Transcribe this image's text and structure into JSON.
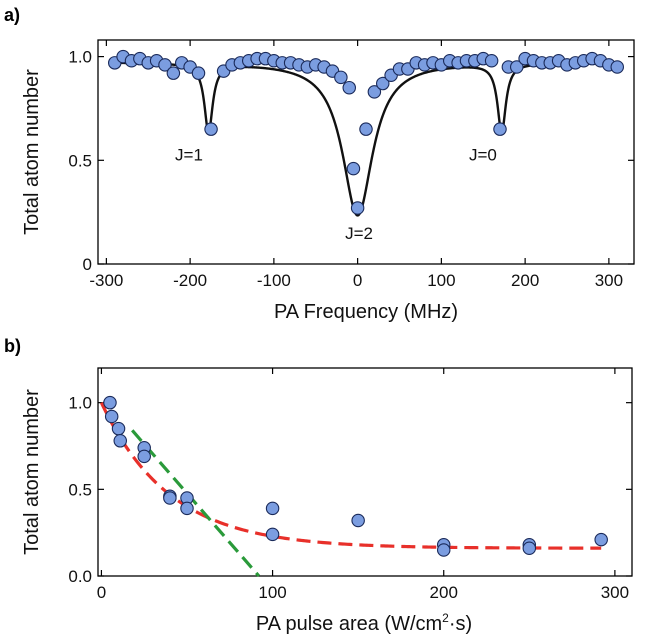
{
  "chart_data": [
    {
      "type": "scatter",
      "panel_label": "a)",
      "xlabel": "PA Frequency (MHz)",
      "ylabel": "Total atom number",
      "xlim": [
        -310,
        330
      ],
      "ylim": [
        0,
        1.08
      ],
      "xticks": [
        -300,
        -200,
        -100,
        0,
        100,
        200,
        300
      ],
      "xtick_labels": [
        "-300",
        "-200",
        "-100",
        "0",
        "100",
        "200",
        "300"
      ],
      "yticks": [
        0,
        0.5,
        1.0
      ],
      "ytick_labels": [
        "0",
        "0.5",
        "1.0"
      ],
      "grid": false,
      "marker_color": "#7b9de0",
      "fit_color": "#111111",
      "series": [
        {
          "kind": "points",
          "x": [
            -290,
            -280,
            -270,
            -260,
            -250,
            -240,
            -230,
            -220,
            -210,
            -200,
            -190,
            -175,
            -160,
            -150,
            -140,
            -130,
            -120,
            -110,
            -100,
            -90,
            -80,
            -70,
            -60,
            -50,
            -40,
            -30,
            -20,
            -10,
            -5,
            0,
            10,
            20,
            30,
            40,
            50,
            60,
            70,
            80,
            90,
            100,
            110,
            120,
            130,
            140,
            150,
            160,
            170,
            180,
            190,
            200,
            210,
            220,
            230,
            240,
            250,
            260,
            270,
            280,
            290,
            300,
            310
          ],
          "y": [
            0.97,
            1.0,
            0.98,
            0.99,
            0.97,
            0.98,
            0.96,
            0.92,
            0.97,
            0.95,
            0.92,
            0.65,
            0.93,
            0.96,
            0.97,
            0.98,
            0.99,
            0.99,
            0.98,
            0.97,
            0.97,
            0.96,
            0.95,
            0.96,
            0.95,
            0.93,
            0.9,
            0.85,
            0.46,
            0.27,
            0.65,
            0.83,
            0.87,
            0.91,
            0.94,
            0.94,
            0.97,
            0.96,
            0.97,
            0.96,
            0.98,
            0.97,
            0.98,
            0.98,
            0.99,
            0.98,
            0.65,
            0.95,
            0.95,
            0.99,
            0.98,
            0.97,
            0.97,
            0.98,
            0.96,
            0.97,
            0.98,
            0.99,
            0.98,
            0.96,
            0.95
          ]
        },
        {
          "kind": "fit",
          "baseline": 0.975,
          "dips": [
            {
              "center": -178,
              "depth": 0.33,
              "width": 6
            },
            {
              "center": 0,
              "depth": 0.74,
              "width": 22
            },
            {
              "center": 172,
              "depth": 0.33,
              "width": 6
            }
          ]
        }
      ],
      "annotations": [
        {
          "text": "J=1",
          "x": -218,
          "y": 0.5
        },
        {
          "text": "J=2",
          "x": -15,
          "y": 0.12
        },
        {
          "text": "J=0",
          "x": 133,
          "y": 0.5
        }
      ]
    },
    {
      "type": "scatter",
      "panel_label": "b)",
      "xlabel_prefix": "PA pulse area (W/cm",
      "xlabel_sup": "2",
      "xlabel_suffix": "·s)",
      "ylabel": "Total atom number",
      "xlim": [
        -2,
        310
      ],
      "ylim": [
        0,
        1.2
      ],
      "xticks": [
        0,
        100,
        200,
        300
      ],
      "xtick_labels": [
        "0",
        "100",
        "200",
        "300"
      ],
      "yticks": [
        0,
        0.5,
        1.0
      ],
      "ytick_labels": [
        "0.0",
        "0.5",
        "1.0"
      ],
      "grid": false,
      "marker_color": "#7b9de0",
      "series": [
        {
          "kind": "points",
          "x": [
            5,
            6,
            10,
            11,
            25,
            25,
            40,
            40,
            50,
            50,
            100,
            100,
            150,
            200,
            200,
            250,
            250,
            292
          ],
          "y": [
            1.0,
            0.92,
            0.85,
            0.78,
            0.74,
            0.69,
            0.46,
            0.45,
            0.45,
            0.39,
            0.39,
            0.24,
            0.32,
            0.18,
            0.15,
            0.18,
            0.16,
            0.21
          ]
        },
        {
          "kind": "fit-exponential",
          "color": "#e8302a",
          "offset": 0.16,
          "amplitude": 0.84,
          "decay": 40
        },
        {
          "kind": "fit-linear",
          "color": "#2a9a3a",
          "intercept": 1.06,
          "slope": -0.0122,
          "x_range": [
            18,
            92
          ]
        }
      ]
    }
  ]
}
